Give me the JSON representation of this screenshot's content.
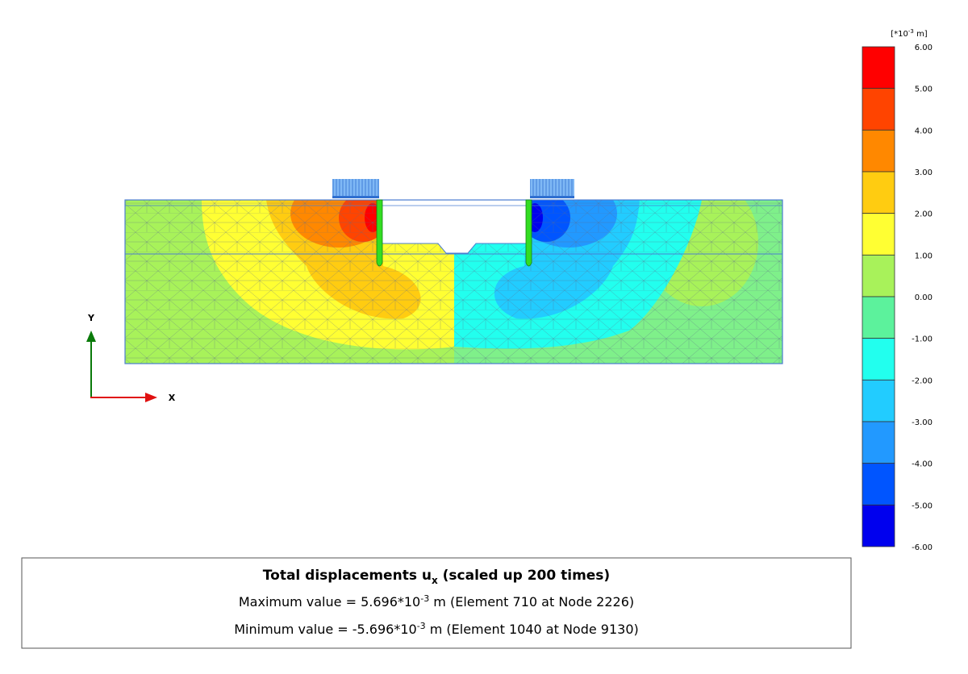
{
  "legend": {
    "unit": {
      "text": "[*10",
      "sup": "-3",
      "rest": " m]"
    },
    "labels": [
      "6.00",
      "5.00",
      "4.00",
      "3.00",
      "2.00",
      "1.00",
      "0.00",
      "-1.00",
      "-2.00",
      "-3.00",
      "-4.00",
      "-5.00",
      "-6.00"
    ],
    "colors": [
      "#ff0000",
      "#ff4400",
      "#ff8800",
      "#ffcc11",
      "#ffff33",
      "#a8f25a",
      "#5cf29c",
      "#22ffee",
      "#22ccff",
      "#2299ff",
      "#0055ff",
      "#0000ee"
    ]
  },
  "axes": {
    "x": "X",
    "y": "Y"
  },
  "caption": {
    "title": {
      "text": "Total displacements u",
      "sub": "x",
      "rest": " (scaled up 200 times)"
    },
    "max": {
      "text": "Maximum value = 5.696*10",
      "sup": "-3",
      "rest": " m (Element 710 at Node 2226)"
    },
    "min": {
      "text": "Minimum value = -5.696*10",
      "sup": "-3",
      "rest": " m (Element 1040 at Node 9130)"
    }
  }
}
